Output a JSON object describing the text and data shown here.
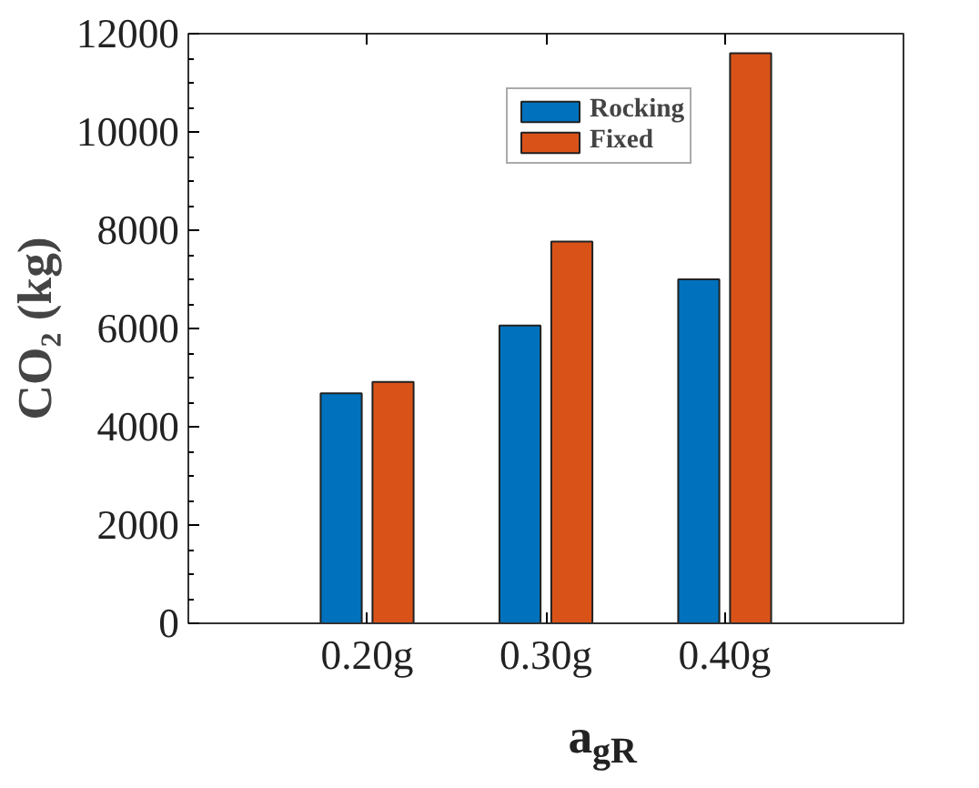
{
  "chart_data": {
    "type": "bar",
    "xlabel": "a$_{gR}$",
    "ylabel": "CO₂ (kg)",
    "categories": [
      "0.20g",
      "0.30g",
      "0.40g"
    ],
    "series": [
      {
        "name": "Rocking",
        "color": "#0072bd",
        "values": [
          4680,
          6060,
          7000
        ]
      },
      {
        "name": "Fixed",
        "color": "#d95319",
        "values": [
          4910,
          7770,
          11600
        ]
      }
    ],
    "ylim": [
      0,
      12000
    ],
    "yticks": [
      0,
      2000,
      4000,
      6000,
      8000,
      10000,
      12000
    ],
    "grid": false,
    "legend": "top right"
  }
}
